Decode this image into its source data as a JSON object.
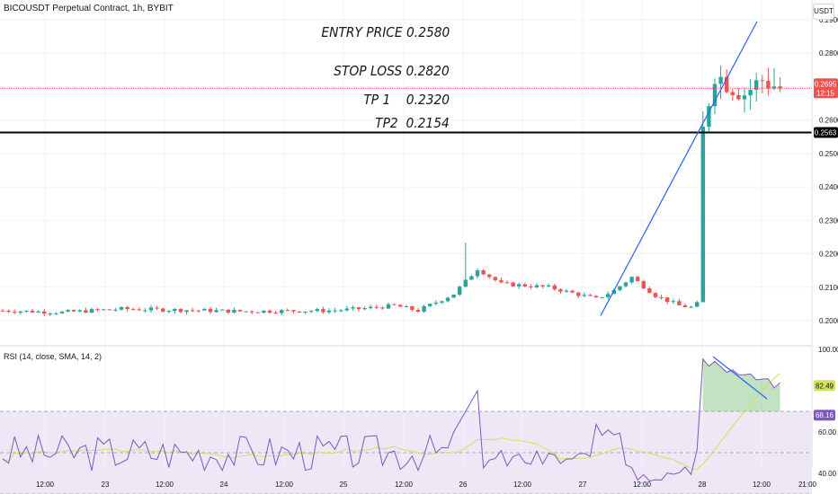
{
  "header": {
    "title": "BICOUSDT Perpetual Contract, 1h, BYBIT",
    "unit_button": "USDT"
  },
  "annotations": {
    "entry": "ENTRY PRICE 0.2580",
    "stop": "STOP LOSS 0.2820",
    "tp1": "TP 1    0.2320",
    "tp2": "TP2  0.2154"
  },
  "colors": {
    "up": "#26a69a",
    "down": "#ef5350",
    "trendline": "#2962ff",
    "rsi_line": "#7e57c2",
    "rsi_ma": "#d4e157",
    "rsi_band": "#ede7f6",
    "black_line": "#000000"
  },
  "chart_data": [
    {
      "type": "candlestick",
      "title": "BICOUSDT Perpetual Contract, 1h, BYBIT",
      "y_axis": {
        "ticks": [
          "0.2000",
          "0.2100",
          "0.2200",
          "0.2300",
          "0.2400",
          "0.2500",
          "0.2600",
          "0.2700",
          "0.2800",
          "0.2900"
        ],
        "ylim": [
          0.1985,
          0.2935
        ],
        "side": "right"
      },
      "x_axis": {
        "labels": [
          "12:00",
          "23",
          "12:00",
          "24",
          "12:00",
          "25",
          "12:00",
          "26",
          "12:00",
          "27",
          "12:00",
          "28",
          "12:00",
          "21:00"
        ]
      },
      "price_labels": {
        "last_price": "0.2695",
        "countdown": "12:15",
        "horizontal_line": "0.2563"
      },
      "horizontal_line_value": 0.2563,
      "last_price_value": 0.2695,
      "trendlines": [
        {
          "from": [
            0.02,
            0.2018
          ],
          "to": [
            0.145,
            0.2895
          ]
        }
      ],
      "grid": true,
      "notes": "Hourly candles trend flat near 0.200-0.206 from the 22nd to the 27th, with a spike to ~0.227 on the 25th, a brief rise to ~0.214 on the 27th, then a vertical breakout on the 28th to ~0.2855 and consolidation around 0.265-0.280."
    },
    {
      "type": "line",
      "title": "RSI (14, close, SMA, 14, 2)",
      "y_axis": {
        "ticks": [
          "40.00",
          "60.00",
          "100.00"
        ],
        "ylim": [
          30,
          100
        ]
      },
      "labels": {
        "rsi": "82.49",
        "ma": "68.16"
      },
      "bands": [
        70,
        50,
        30
      ],
      "series": [
        {
          "name": "RSI",
          "last": 82.49
        },
        {
          "name": "RSI-based MA",
          "last": 68.16
        }
      ]
    }
  ]
}
